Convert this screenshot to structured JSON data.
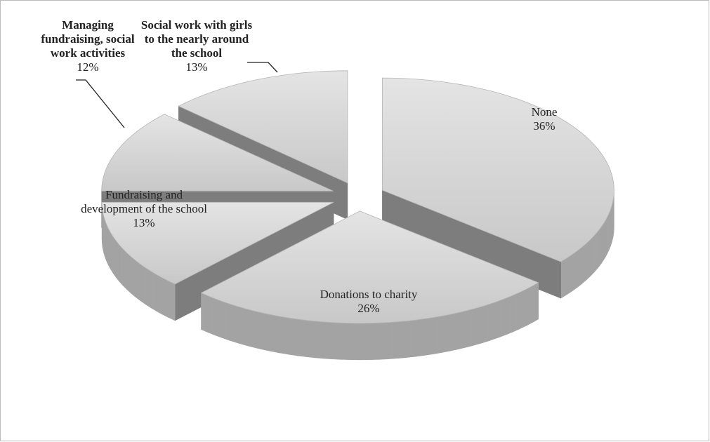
{
  "chart_data": {
    "type": "pie3d",
    "categories": [
      "None",
      "Donations to charity",
      "Fundraising and development of the school",
      "Managing fundraising, social work activities",
      "Social work with girls to the nearly around the school"
    ],
    "values": [
      36,
      26,
      13,
      12,
      13
    ],
    "value_labels": [
      "36%",
      "26%",
      "13%",
      "12%",
      "13%"
    ],
    "color": "#d6d6d6"
  }
}
